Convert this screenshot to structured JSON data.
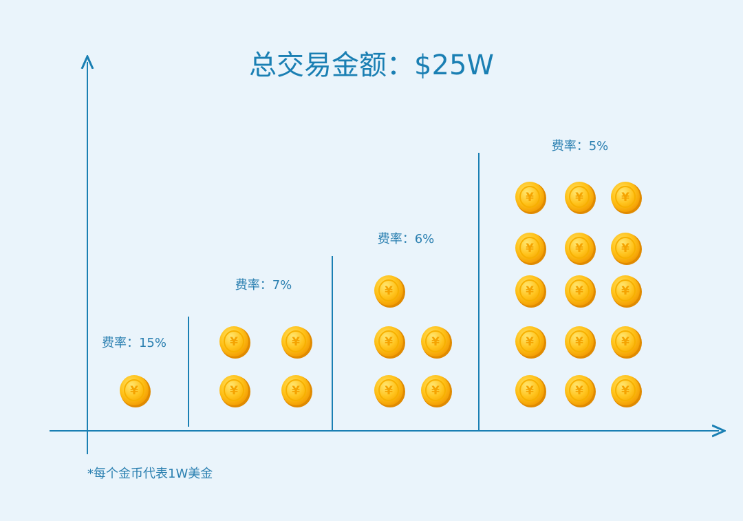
{
  "title": "总交易金额：$25W",
  "footnote": "*每个金币代表1W美金",
  "coin_symbol": "¥",
  "colors": {
    "background": "#eaf4fb",
    "axis": "#1a7fb3",
    "text": "#2a7fb0",
    "coin_light": "#ffd84a",
    "coin_dark": "#f2a100",
    "coin_edge": "#e08a00"
  },
  "chart_data": {
    "type": "bar",
    "unit": "每个金币代表1W美金",
    "categories": [
      "费率：15%",
      "费率：7%",
      "费率：6%",
      "费率：5%"
    ],
    "values": [
      1,
      4,
      5,
      15
    ]
  }
}
